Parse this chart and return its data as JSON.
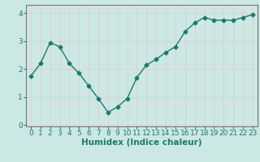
{
  "x": [
    0,
    1,
    2,
    3,
    4,
    5,
    6,
    7,
    8,
    9,
    10,
    11,
    12,
    13,
    14,
    15,
    16,
    17,
    18,
    19,
    20,
    21,
    22,
    23
  ],
  "y": [
    1.75,
    2.2,
    2.95,
    2.8,
    2.2,
    1.85,
    1.4,
    0.95,
    0.45,
    0.65,
    0.95,
    1.7,
    2.15,
    2.35,
    2.6,
    2.8,
    3.35,
    3.65,
    3.85,
    3.75,
    3.75,
    3.75,
    3.85,
    3.95
  ],
  "line_color": "#1a7a6e",
  "marker": "D",
  "marker_size": 2.5,
  "bg_color": "#cce8e4",
  "grid_color_v": "#e8c8c8",
  "grid_color_h": "#e8c8c8",
  "xlabel": "Humidex (Indice chaleur)",
  "xlabel_fontsize": 7.5,
  "tick_fontsize": 6.5,
  "ylim": [
    -0.05,
    4.3
  ],
  "xlim": [
    -0.5,
    23.5
  ],
  "yticks": [
    0,
    1,
    2,
    3,
    4
  ],
  "xticks": [
    0,
    1,
    2,
    3,
    4,
    5,
    6,
    7,
    8,
    9,
    10,
    11,
    12,
    13,
    14,
    15,
    16,
    17,
    18,
    19,
    20,
    21,
    22,
    23
  ],
  "spine_color": "#777777",
  "linewidth": 1.0
}
